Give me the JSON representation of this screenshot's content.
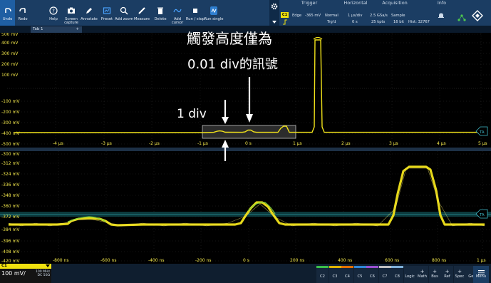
{
  "toolbar": {
    "buttons": [
      {
        "name": "undo-button",
        "icon": "undo-icon",
        "label": "Undo"
      },
      {
        "name": "redo-button",
        "icon": "redo-icon",
        "label": "Redo"
      },
      {
        "name": "help-button",
        "icon": "help-icon",
        "label": "Help"
      },
      {
        "name": "screen-capture-button",
        "icon": "camera-icon",
        "label": "Screen capture"
      },
      {
        "name": "annotate-button",
        "icon": "pen-icon",
        "label": "Annotate"
      },
      {
        "name": "preset-button",
        "icon": "preset-icon",
        "label": "Preset"
      },
      {
        "name": "add-zoom-button",
        "icon": "zoom-icon",
        "label": "Add zoom"
      },
      {
        "name": "measure-button",
        "icon": "ruler-icon",
        "label": "Measure"
      },
      {
        "name": "delete-button",
        "icon": "trash-icon",
        "label": "Delete"
      },
      {
        "name": "add-cursor-button",
        "icon": "cursor-icon",
        "label": "Add cursor"
      },
      {
        "name": "run-stop-button",
        "icon": "stop-icon",
        "label": "Run / stop"
      },
      {
        "name": "run-single-button",
        "icon": "run-single-icon",
        "label": "Run single"
      }
    ]
  },
  "trigger": {
    "title": "Trigger",
    "type": "Edge",
    "level": "-365 mV",
    "mode": "Normal",
    "state": "Trg'd",
    "channel": "C1"
  },
  "horizontal": {
    "title": "Horizontal",
    "scale": "1 µs/div",
    "position": "0 s"
  },
  "acquisition": {
    "title": "Acquisition",
    "rate": "2.5 GSa/s",
    "mode": "Sample",
    "points": "25 kpts",
    "bits": "16 bit",
    "hist": "Hist: 32767"
  },
  "info": {
    "title": "Info"
  },
  "tab": {
    "label": "Tab 1",
    "add": "+"
  },
  "top_diagram": {
    "y_labels": [
      "500 mV",
      "400 mV",
      "300 mV",
      "200 mV",
      "100 mV",
      "-100 mV",
      "-200 mV",
      "-300 mV",
      "-400 mV",
      "-500 mV"
    ],
    "x_labels": [
      "-4 µs",
      "-3 µs",
      "-2 µs",
      "-1 µs",
      "0 s",
      "1 µs",
      "2 µs",
      "3 µs",
      "4 µs",
      "5 µs"
    ],
    "marker": "TA"
  },
  "zoom_diagram": {
    "y_labels": [
      "-300 mV",
      "-312 mV",
      "-324 mV",
      "-336 mV",
      "-348 mV",
      "-360 mV",
      "-372 mV",
      "-384 mV",
      "-396 mV",
      "-408 mV",
      "-420 mV"
    ],
    "x_labels": [
      "-800 ns",
      "-600 ns",
      "-400 ns",
      "-200 ns",
      "0 s",
      "200 ns",
      "400 ns",
      "600 ns",
      "800 ns",
      "1 µs"
    ],
    "marker": "TA"
  },
  "annotations": {
    "line1": "觸發高度僅為",
    "line2": "0.01 div的訊號",
    "div_label": "1 div"
  },
  "status": {
    "ch1": "C1",
    "scale": "100 mV/",
    "bw": "100 MHz",
    "coupling": "DC 50Ω",
    "channels": [
      {
        "label": "C2",
        "color": "#3bbf4a"
      },
      {
        "label": "C3",
        "color": "#e0b400"
      },
      {
        "label": "C4",
        "color": "#e06f00"
      },
      {
        "label": "C5",
        "color": "#2f86d6"
      },
      {
        "label": "C6",
        "color": "#9a4fd0"
      },
      {
        "label": "C7",
        "color": "#c0c0c0"
      },
      {
        "label": "C8",
        "color": "#7fb0d8"
      }
    ],
    "tools": [
      {
        "label": "Logic",
        "plus": ""
      },
      {
        "label": "Math",
        "plus": "+"
      },
      {
        "label": "Bus",
        "plus": "+"
      },
      {
        "label": "Ref",
        "plus": "+"
      },
      {
        "label": "Spec",
        "plus": "+"
      },
      {
        "label": "Gen",
        "plus": ""
      }
    ],
    "menu": "Menu"
  }
}
